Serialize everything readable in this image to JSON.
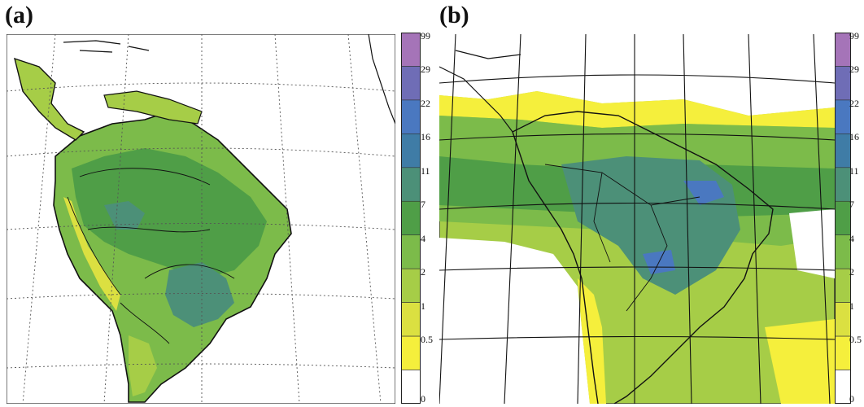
{
  "panels": [
    {
      "label": "(a)"
    },
    {
      "label": "(b)"
    }
  ],
  "legend": {
    "ticks": [
      "99",
      "29",
      "22",
      "16",
      "11",
      "7",
      "4",
      "2",
      "1",
      "0.5",
      "0"
    ],
    "colors": [
      "#a574b8",
      "#6f6db6",
      "#4a78c0",
      "#3f7ca6",
      "#4c9078",
      "#4f9e47",
      "#7cbb4a",
      "#a6cd47",
      "#dbe041",
      "#f5ef3c",
      "#ffffff"
    ]
  },
  "colors": {
    "land_base": "#7cbb4a",
    "ocean": "#ffffff",
    "coast": "#111111",
    "grid": "#555555"
  }
}
